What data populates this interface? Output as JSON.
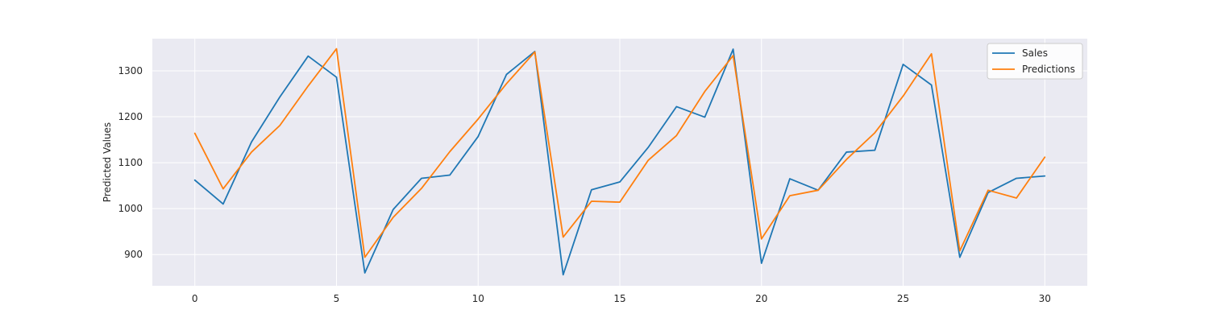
{
  "chart_data": {
    "type": "line",
    "title": "",
    "xlabel": "",
    "ylabel": "Predicted Values",
    "x": [
      0,
      1,
      2,
      3,
      4,
      5,
      6,
      7,
      8,
      9,
      10,
      11,
      12,
      13,
      14,
      15,
      16,
      17,
      18,
      19,
      20,
      21,
      22,
      23,
      24,
      25,
      26,
      27,
      28,
      29,
      30
    ],
    "xlim": [
      -1.5,
      31.5
    ],
    "ylim": [
      832,
      1370
    ],
    "xticks": [
      0,
      5,
      10,
      15,
      20,
      25,
      30
    ],
    "yticks": [
      900,
      1000,
      1100,
      1200,
      1300
    ],
    "grid": true,
    "background": "#eaeaf2",
    "legend_position": "top-right",
    "series": [
      {
        "name": "Sales",
        "color": "#1f77b4",
        "values": [
          1062,
          1010,
          1145,
          1243,
          1332,
          1286,
          860,
          998,
          1066,
          1073,
          1157,
          1292,
          1342,
          856,
          1041,
          1058,
          1133,
          1222,
          1199,
          1347,
          881,
          1065,
          1040,
          1123,
          1127,
          1314,
          1269,
          894,
          1035,
          1066,
          1071
        ]
      },
      {
        "name": "Predictions",
        "color": "#ff7f0e",
        "values": [
          1164,
          1043,
          1123,
          1181,
          1267,
          1348,
          894,
          981,
          1044,
          1124,
          1195,
          1272,
          1341,
          938,
          1016,
          1014,
          1105,
          1159,
          1255,
          1333,
          934,
          1028,
          1040,
          1107,
          1165,
          1245,
          1337,
          908,
          1040,
          1023,
          1112
        ]
      }
    ]
  }
}
